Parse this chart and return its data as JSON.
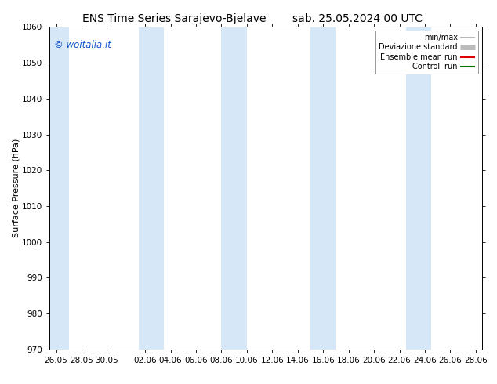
{
  "title_left": "ENS Time Series Sarajevo-Bjelave",
  "title_right": "sab. 25.05.2024 00 UTC",
  "ylabel": "Surface Pressure (hPa)",
  "ylim": [
    970,
    1060
  ],
  "yticks": [
    970,
    980,
    990,
    1000,
    1010,
    1020,
    1030,
    1040,
    1050,
    1060
  ],
  "xtick_labels": [
    "26.05",
    "28.05",
    "30.05",
    "02.06",
    "04.06",
    "06.06",
    "08.06",
    "10.06",
    "12.06",
    "14.06",
    "16.06",
    "18.06",
    "20.06",
    "22.06",
    "24.06",
    "26.06",
    "28.06"
  ],
  "watermark": "© woitalia.it",
  "legend_items": [
    {
      "label": "min/max",
      "color": "#aaaaaa",
      "lw": 1.2
    },
    {
      "label": "Deviazione standard",
      "color": "#bbbbbb",
      "lw": 5
    },
    {
      "label": "Ensemble mean run",
      "color": "#dd0000",
      "lw": 1.5
    },
    {
      "label": "Controll run",
      "color": "#007700",
      "lw": 1.5
    }
  ],
  "band_color": "#d6e8f7",
  "band_alpha": 1.0,
  "bg_color": "#ffffff",
  "title_fontsize": 10,
  "tick_fontsize": 7.5,
  "ylabel_fontsize": 8,
  "watermark_color": "#1155cc"
}
